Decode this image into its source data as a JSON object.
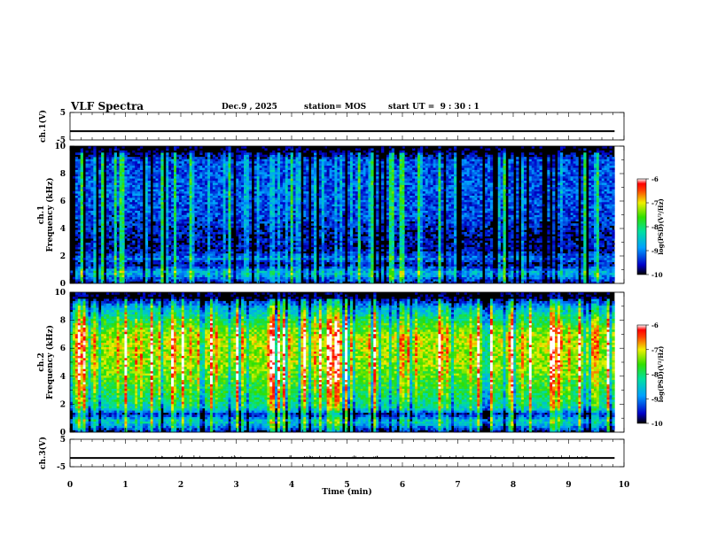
{
  "header": {
    "title": "VLF Spectra",
    "date": "Dec.9 , 2025",
    "station": "station= MOS",
    "start_ut": "start UT =  9 : 30 : 1"
  },
  "chart_data": [
    {
      "type": "line",
      "panel": "ch1-voltage",
      "ylabel": "ch.1(V)",
      "ylim": [
        -5,
        5
      ],
      "yticks": [
        "5",
        "-5"
      ],
      "xlim": [
        0,
        10
      ],
      "series": [
        {
          "x": [
            0,
            9.83
          ],
          "y": [
            -1.8,
            -1.8
          ]
        }
      ]
    },
    {
      "type": "heatmap",
      "panel": "ch1-spectrogram",
      "ylabel": "ch.1 Frequency (kHz)",
      "ylim": [
        0,
        10
      ],
      "yticks": [
        "0",
        "2",
        "4",
        "6",
        "8",
        "10"
      ],
      "xlim": [
        0,
        10
      ],
      "data_xmax": 9.83,
      "colorbar": {
        "label": "log(PSD)(V²/Hz)",
        "range": [
          -10,
          -6
        ],
        "ticks": [
          "-6",
          "-7",
          "-8",
          "-9",
          "-10"
        ]
      },
      "intensity_profile": [
        {
          "f": 0.0,
          "level": -9.8
        },
        {
          "f": 0.3,
          "level": -9.2
        },
        {
          "f": 0.8,
          "level": -8.6
        },
        {
          "f": 1.4,
          "level": -9.7
        },
        {
          "f": 1.8,
          "level": -9.0
        },
        {
          "f": 2.4,
          "level": -9.7
        },
        {
          "f": 3.5,
          "level": -9.6
        },
        {
          "f": 5.0,
          "level": -9.3
        },
        {
          "f": 7.0,
          "level": -9.2
        },
        {
          "f": 9.0,
          "level": -9.3
        },
        {
          "f": 9.6,
          "level": -10
        },
        {
          "f": 10.0,
          "level": -10
        }
      ]
    },
    {
      "type": "heatmap",
      "panel": "ch2-spectrogram",
      "ylabel": "ch.2 Frequency (kHz)",
      "ylim": [
        0,
        10
      ],
      "yticks": [
        "0",
        "2",
        "4",
        "6",
        "8",
        "10"
      ],
      "xlim": [
        0,
        10
      ],
      "data_xmax": 9.83,
      "colorbar": {
        "label": "log(PSD)(V²/Hz)",
        "range": [
          -10,
          -6
        ],
        "ticks": [
          "-6",
          "-7",
          "-8",
          "-9",
          "-10"
        ]
      },
      "intensity_profile": [
        {
          "f": 0.0,
          "level": -9.8
        },
        {
          "f": 0.4,
          "level": -9.0
        },
        {
          "f": 0.8,
          "level": -8.4
        },
        {
          "f": 1.3,
          "level": -9.6
        },
        {
          "f": 1.7,
          "level": -8.3
        },
        {
          "f": 3.0,
          "level": -7.8
        },
        {
          "f": 5.0,
          "level": -7.3
        },
        {
          "f": 6.8,
          "level": -7.2
        },
        {
          "f": 8.0,
          "level": -7.9
        },
        {
          "f": 9.0,
          "level": -8.8
        },
        {
          "f": 9.6,
          "level": -10
        },
        {
          "f": 10.0,
          "level": -10
        }
      ]
    },
    {
      "type": "line",
      "panel": "ch3-voltage",
      "ylabel": "ch.3(V)",
      "ylim": [
        -5,
        5
      ],
      "yticks": [
        "5",
        "-5"
      ],
      "xlim": [
        0,
        10
      ],
      "xlabel": "Time (min)",
      "xticks": [
        "0",
        "1",
        "2",
        "3",
        "4",
        "5",
        "6",
        "7",
        "8",
        "9",
        "10"
      ],
      "series": [
        {
          "x": [
            0,
            9.83
          ],
          "y": [
            -1.8,
            -1.8
          ]
        }
      ]
    }
  ]
}
